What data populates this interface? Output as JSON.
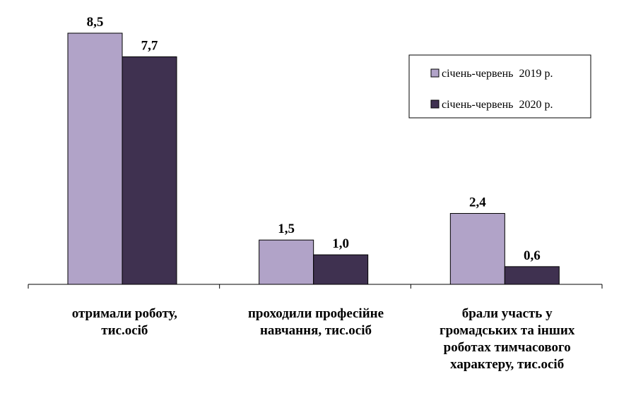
{
  "chart_data": {
    "type": "bar",
    "categories": [
      [
        "отримали роботу,",
        "тис.осіб"
      ],
      [
        "проходили професійне",
        "навчання, тис.осіб"
      ],
      [
        "брали участь у",
        "громадських та інших",
        "роботах тимчасового",
        "характеру, тис.осіб"
      ]
    ],
    "series": [
      {
        "name": "січень-червень  2019 р.",
        "values": [
          8.5,
          1.5,
          2.4
        ],
        "labels": [
          "8,5",
          "1,5",
          "2,4"
        ],
        "color": "#b1a3c8"
      },
      {
        "name": "січень-червень  2020 р.",
        "values": [
          7.7,
          1.0,
          0.6
        ],
        "labels": [
          "7,7",
          "1,0",
          "0,6"
        ],
        "color": "#3f3150"
      }
    ],
    "ylim": [
      0,
      8.5
    ],
    "legend_position": "top-right",
    "grid": false
  }
}
